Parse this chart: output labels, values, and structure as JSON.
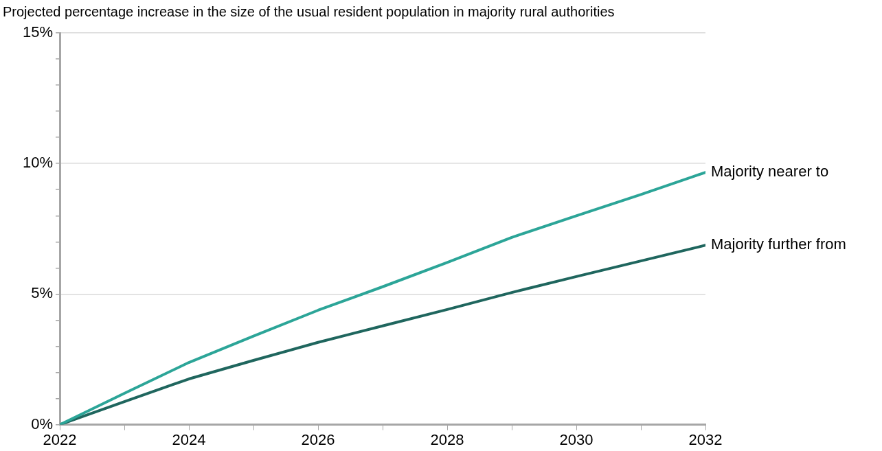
{
  "chart_data": {
    "type": "line",
    "title": "Projected percentage increase in the size of the usual resident population in majority rural authorities",
    "x": [
      2022,
      2023,
      2024,
      2025,
      2026,
      2027,
      2028,
      2029,
      2030,
      2031,
      2032
    ],
    "series": [
      {
        "name": "Majority nearer to",
        "color": "#2ca598",
        "values": [
          0,
          1.2,
          2.38,
          3.39,
          4.38,
          5.28,
          6.21,
          7.17,
          8.0,
          8.81,
          9.66
        ]
      },
      {
        "name": "Majority further from",
        "color": "#1f665e",
        "values": [
          0,
          0.88,
          1.75,
          2.46,
          3.15,
          3.78,
          4.41,
          5.06,
          5.67,
          6.27,
          6.87
        ]
      }
    ],
    "xlim": [
      2022,
      2032
    ],
    "xticks": [
      2022,
      {
        "value": 2023,
        "label": null
      },
      2024,
      {
        "value": 2025,
        "label": null
      },
      2026,
      {
        "value": 2027,
        "label": null
      },
      2028,
      {
        "value": 2029,
        "label": null
      },
      2030,
      {
        "value": 2031,
        "label": null
      },
      2032
    ],
    "ylim": [
      0,
      15
    ],
    "yticks": [
      {
        "value": 0,
        "label": "0%"
      },
      {
        "value": 1,
        "label": null
      },
      {
        "value": 2,
        "label": null
      },
      {
        "value": 3,
        "label": null
      },
      {
        "value": 4,
        "label": null
      },
      {
        "value": 5,
        "label": "5%"
      },
      {
        "value": 6,
        "label": null
      },
      {
        "value": 7,
        "label": null
      },
      {
        "value": 8,
        "label": null
      },
      {
        "value": 9,
        "label": null
      },
      {
        "value": 10,
        "label": "10%"
      },
      {
        "value": 11,
        "label": null
      },
      {
        "value": 12,
        "label": null
      },
      {
        "value": 13,
        "label": null
      },
      {
        "value": 14,
        "label": null
      },
      {
        "value": 15,
        "label": "15%"
      }
    ],
    "grid": "y",
    "legend": false,
    "marker": "none",
    "line_style": "solid"
  }
}
